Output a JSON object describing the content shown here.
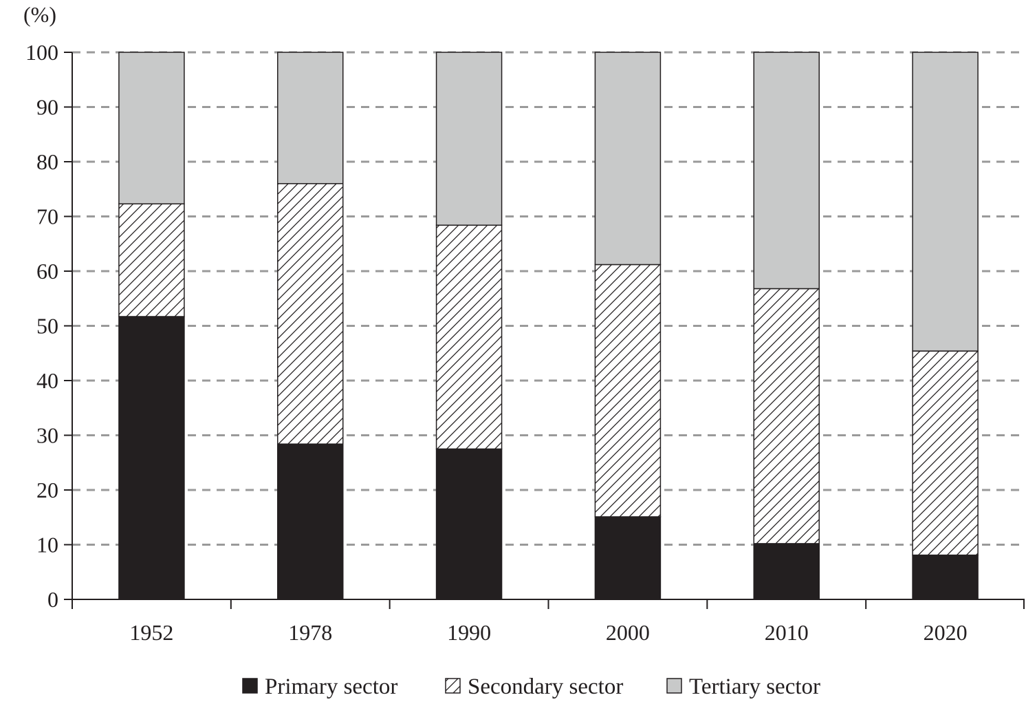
{
  "chart_data": {
    "type": "bar",
    "stacked": true,
    "title": "",
    "xlabel": "",
    "ylabel": "(%)",
    "ylim": [
      0,
      100
    ],
    "yticks": [
      0,
      10,
      20,
      30,
      40,
      50,
      60,
      70,
      80,
      90,
      100
    ],
    "grid": "horizontal-dashed",
    "legend_position": "bottom",
    "categories": [
      "1952",
      "1978",
      "1990",
      "2000",
      "2010",
      "2020"
    ],
    "series": [
      {
        "name": "Primary sector",
        "color": "#231f20",
        "pattern": "solid",
        "values": [
          51.7,
          28.4,
          27.5,
          15.1,
          10.2,
          8.1
        ]
      },
      {
        "name": "Secondary sector",
        "color": "#ffffff",
        "pattern": "hatch",
        "values": [
          20.6,
          47.6,
          40.9,
          46.1,
          46.6,
          37.3
        ]
      },
      {
        "name": "Tertiary sector",
        "color": "#c8c9c9",
        "pattern": "solid",
        "values": [
          27.7,
          24.0,
          31.6,
          38.8,
          43.2,
          54.6
        ]
      }
    ]
  }
}
